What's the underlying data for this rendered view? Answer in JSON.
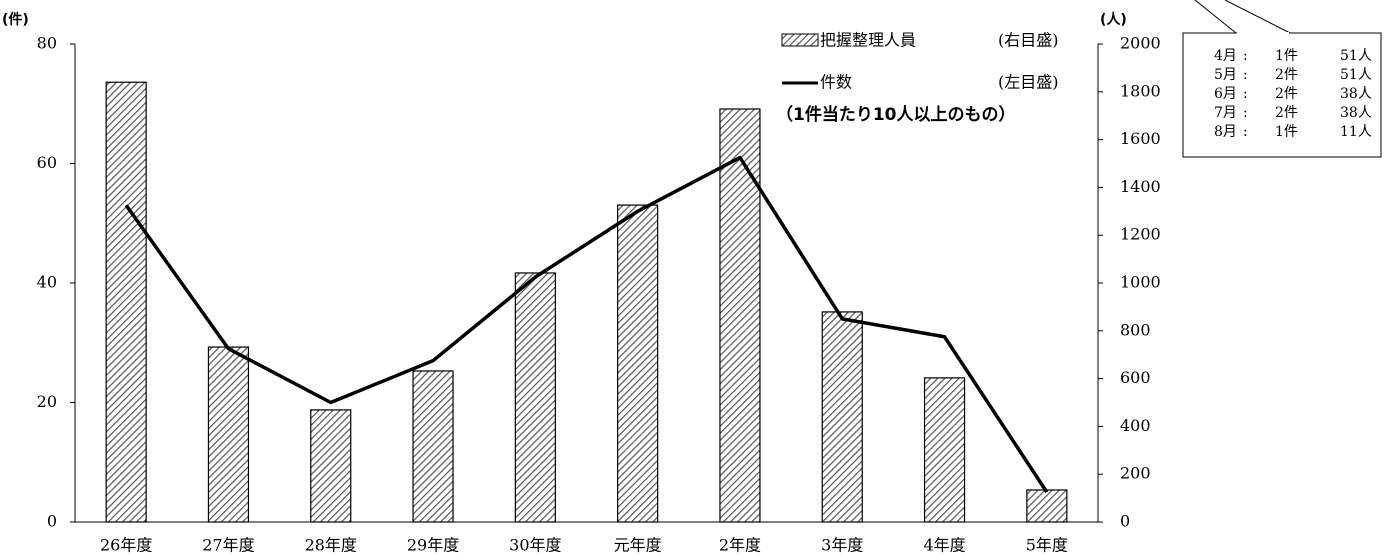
{
  "chart_data": {
    "type": "bar-line",
    "categories": [
      "26年度",
      "27年度",
      "28年度",
      "29年度",
      "30年度",
      "元年度",
      "2年度",
      "3年度",
      "4年度",
      "5年度"
    ],
    "series": [
      {
        "name": "把握整理人員",
        "type": "bar",
        "axis": "y2",
        "color": "#555555",
        "values": [
          1840,
          732,
          469,
          632,
          1042,
          1326,
          1728,
          879,
          603,
          134
        ]
      },
      {
        "name": "件数",
        "type": "line",
        "axis": "y",
        "color": "#000000",
        "values": [
          53,
          29,
          20,
          27,
          41,
          52,
          61,
          34,
          31,
          5
        ]
      }
    ],
    "ylim": [
      0,
      80
    ],
    "yticks": [
      0,
      20,
      40,
      60,
      80
    ],
    "y2lim": [
      0,
      2000
    ],
    "y2ticks": [
      0,
      200,
      400,
      600,
      800,
      1000,
      1200,
      1400,
      1600,
      1800,
      2000
    ],
    "ylabel": "(件)",
    "y2label": "(人)",
    "legend_notes": [
      "(右目盛)",
      "(左目盛)"
    ],
    "subtitle": "（1件当たり10人以上のもの）",
    "callout_rows": [
      [
        "4月",
        ":",
        "1件",
        "51人"
      ],
      [
        "5月",
        ":",
        "2件",
        "51人"
      ],
      [
        "6月",
        ":",
        "2件",
        "38人"
      ],
      [
        "7月",
        ":",
        "2件",
        "38人"
      ],
      [
        "8月",
        ":",
        "1件",
        "11人"
      ]
    ]
  }
}
